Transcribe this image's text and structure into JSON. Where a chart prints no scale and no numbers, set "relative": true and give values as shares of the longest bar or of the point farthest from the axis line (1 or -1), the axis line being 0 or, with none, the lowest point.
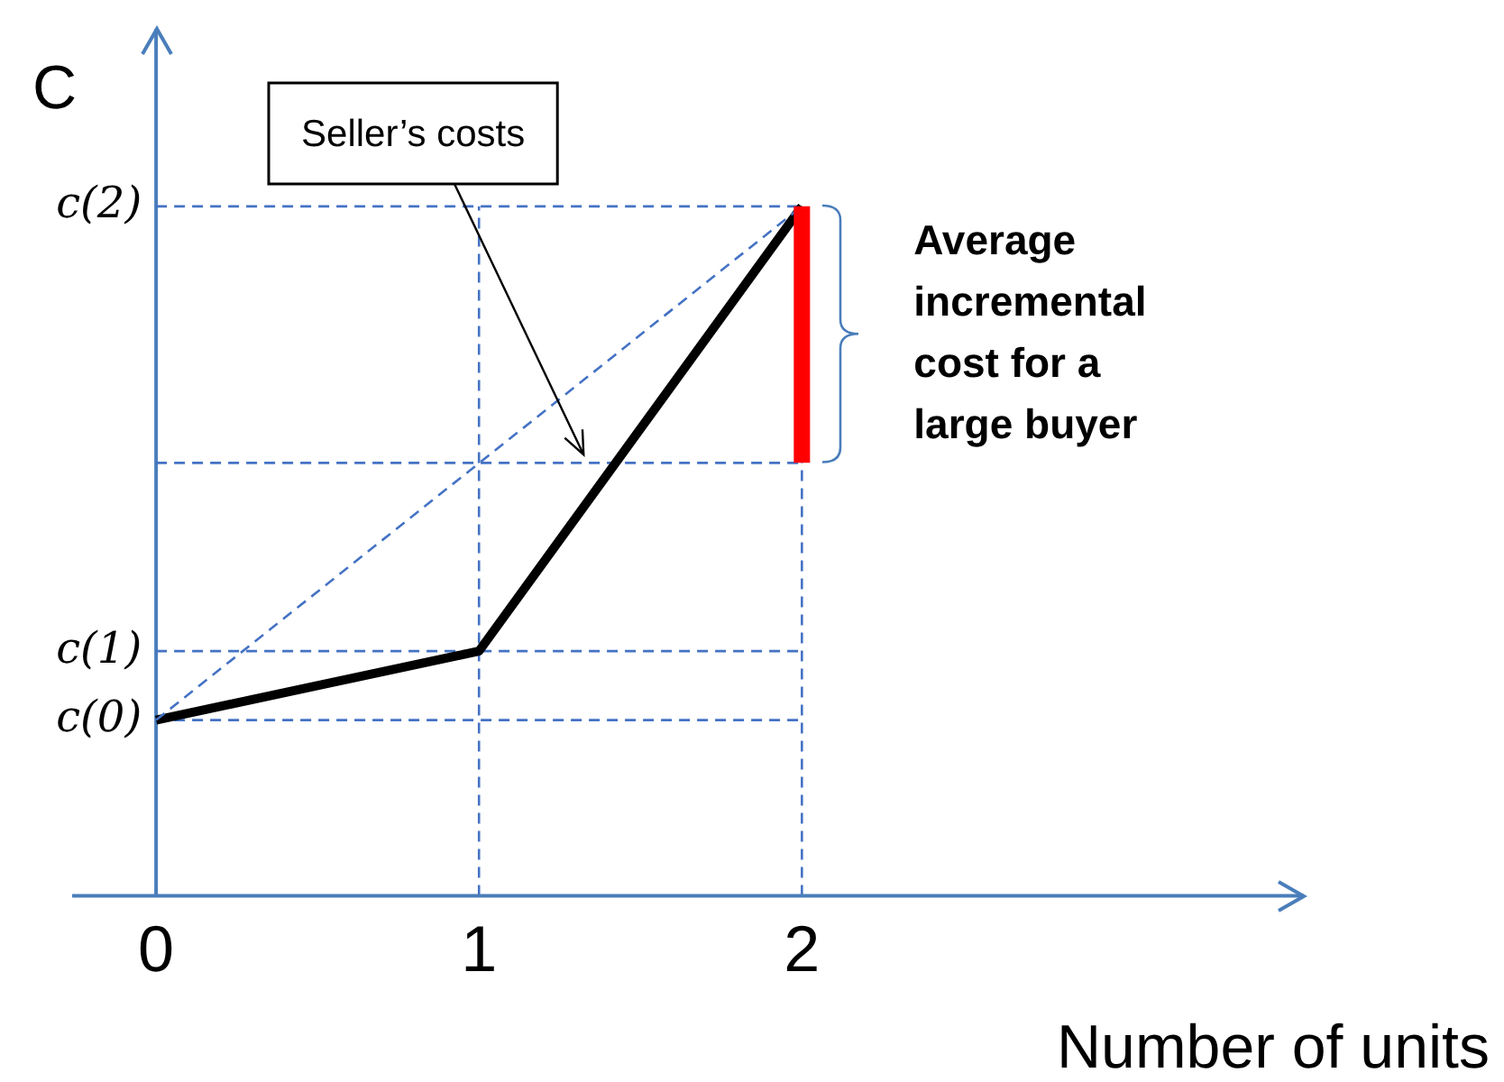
{
  "chart_data": {
    "type": "line",
    "xlabel": "Number of units",
    "ylabel": "C",
    "relative": true,
    "xlim": [
      -0.26,
      3.56
    ],
    "xticks": [
      0,
      1,
      2
    ],
    "grid": false,
    "legend": false,
    "marker": "none",
    "series": [
      {
        "type": "line",
        "color": "#000000",
        "x": [
          0,
          1,
          2
        ],
        "values": [
          0.255,
          0.355,
          1
        ],
        "line_style": "solid"
      },
      {
        "type": "line",
        "color": "#4472c4",
        "x": [
          0,
          2
        ],
        "values": [
          0.255,
          1
        ],
        "line_style": "dashed"
      },
      {
        "type": "line",
        "color": "#ff0000",
        "x": [
          2,
          2
        ],
        "values": [
          0.628,
          1
        ],
        "line_style": "solid"
      }
    ],
    "ref_lines": [
      {
        "axis": "x",
        "value": 0,
        "color": "#4a7ebb",
        "line_style": "solid"
      },
      {
        "axis": "y",
        "value": 0.255,
        "label": "c(0)",
        "color": "#4472c4",
        "line_style": "dashed"
      },
      {
        "axis": "y",
        "value": 0.355,
        "label": "c(1)",
        "color": "#4472c4",
        "line_style": "dashed"
      },
      {
        "axis": "y",
        "value": 1,
        "label": "c(2)",
        "color": "#4472c4",
        "line_style": "dashed"
      },
      {
        "axis": "y",
        "value": 0.628,
        "color": "#4472c4",
        "line_style": "dashed"
      },
      {
        "axis": "x",
        "value": 1,
        "color": "#4472c4",
        "line_style": "dashed"
      },
      {
        "axis": "x",
        "value": 2,
        "color": "#4472c4",
        "line_style": "dashed"
      }
    ],
    "annotations": [
      "Seller’s costs",
      {
        "text": "Average incremental cost for a large buyer",
        "x": 2,
        "y": 0.814
      }
    ]
  }
}
